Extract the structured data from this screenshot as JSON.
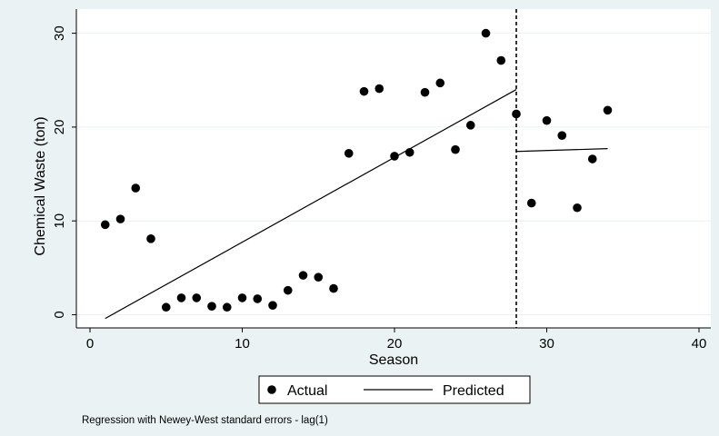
{
  "chart_data": {
    "type": "scatter",
    "title": "",
    "xlabel": "Season",
    "ylabel": "Chemical Waste (ton)",
    "xlim": [
      0,
      40
    ],
    "ylim": [
      0,
      30
    ],
    "xticks": [
      0,
      10,
      20,
      30,
      40
    ],
    "yticks": [
      0,
      10,
      20,
      30
    ],
    "grid": "horizontal",
    "series": [
      {
        "name": "Actual",
        "kind": "markers",
        "color": "#000000",
        "x": [
          1,
          2,
          3,
          4,
          5,
          6,
          7,
          8,
          9,
          10,
          11,
          12,
          13,
          14,
          15,
          16,
          17,
          18,
          19,
          20,
          21,
          22,
          23,
          24,
          25,
          26,
          27,
          28,
          29,
          30,
          31,
          32,
          33,
          34
        ],
        "y": [
          9.6,
          10.2,
          13.5,
          8.1,
          0.8,
          1.8,
          1.8,
          0.9,
          0.8,
          1.8,
          1.7,
          1.0,
          2.6,
          4.2,
          4.0,
          2.8,
          17.2,
          23.8,
          24.1,
          16.9,
          17.3,
          23.7,
          24.7,
          17.6,
          20.2,
          30.0,
          27.1,
          21.4,
          11.9,
          20.7,
          19.1,
          11.4,
          16.6,
          21.8
        ]
      },
      {
        "name": "Predicted",
        "kind": "line",
        "color": "#000000",
        "segments": [
          {
            "x": [
              1,
              28
            ],
            "y": [
              -0.4,
              24.0
            ]
          },
          {
            "x": [
              28,
              34
            ],
            "y": [
              17.4,
              17.7
            ]
          }
        ]
      }
    ],
    "vline": {
      "x": 28,
      "style": "dashed"
    },
    "legend": {
      "position": "bottom",
      "entries": [
        "Actual",
        "Predicted"
      ]
    },
    "note": "Regression with Newey-West standard errors - lag(1)"
  }
}
